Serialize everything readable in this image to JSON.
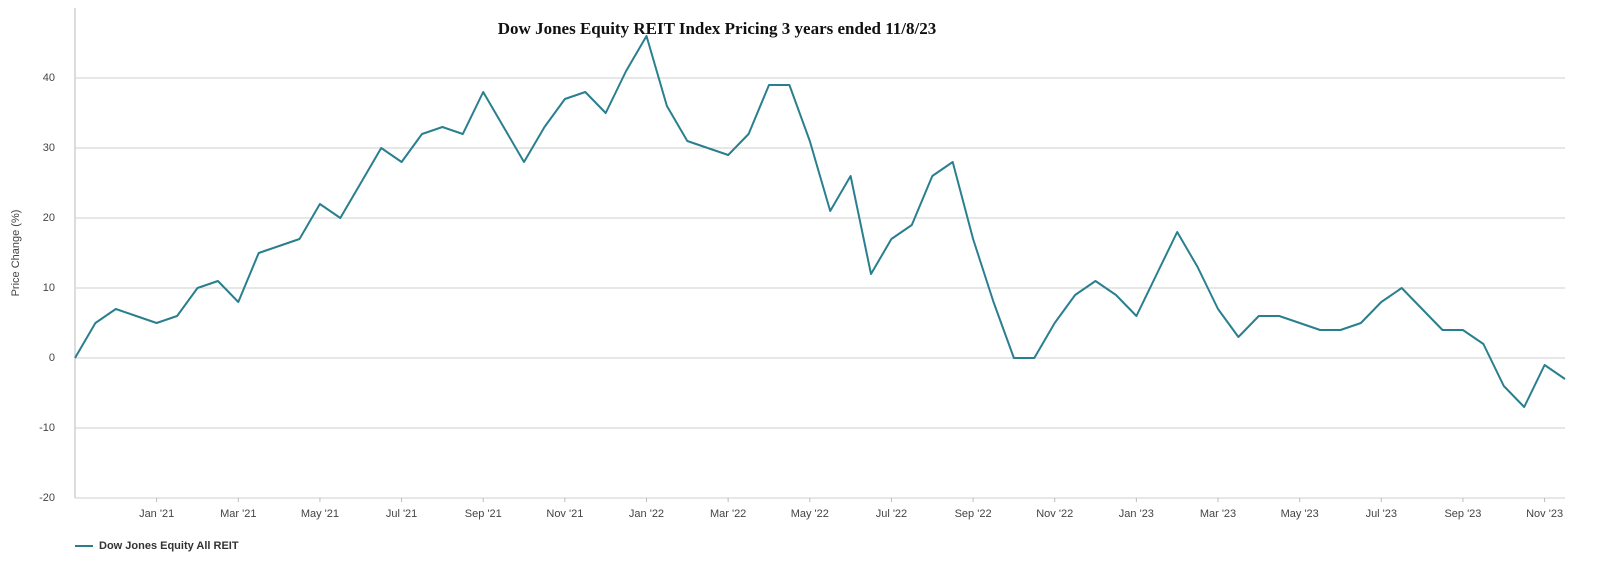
{
  "chart_data": {
    "type": "line",
    "title": "Dow Jones Equity REIT Index Pricing 3 years ended 11/8/23",
    "y_label": "Price Change (%)",
    "categories": [
      null,
      null,
      null,
      null,
      "Jan '21",
      null,
      null,
      null,
      "Mar '21",
      null,
      null,
      null,
      "May '21",
      null,
      null,
      null,
      "Jul '21",
      null,
      null,
      null,
      "Sep '21",
      null,
      null,
      null,
      "Nov '21",
      null,
      null,
      null,
      "Jan '22",
      null,
      null,
      null,
      "Mar '22",
      null,
      null,
      null,
      "May '22",
      null,
      null,
      null,
      "Jul '22",
      null,
      null,
      null,
      "Sep '22",
      null,
      null,
      null,
      "Nov '22",
      null,
      null,
      null,
      "Jan '23",
      null,
      null,
      null,
      "Mar '23",
      null,
      null,
      null,
      "May '23",
      null,
      null,
      null,
      "Jul '23",
      null,
      null,
      null,
      "Sep '23",
      null,
      null,
      null,
      "Nov '23",
      null
    ],
    "series": [
      {
        "name": "Dow Jones Equity All REIT",
        "color": "#2a7f8f",
        "values": [
          0,
          5,
          7,
          6,
          5,
          6,
          10,
          11,
          8,
          15,
          16,
          17,
          22,
          20,
          25,
          30,
          28,
          32,
          33,
          32,
          38,
          33,
          28,
          33,
          37,
          38,
          35,
          41,
          46,
          36,
          31,
          30,
          29,
          32,
          39,
          39,
          31,
          21,
          26,
          12,
          17,
          19,
          26,
          28,
          17,
          8,
          0,
          0,
          5,
          9,
          11,
          9,
          6,
          12,
          18,
          13,
          7,
          3,
          6,
          6,
          5,
          4,
          4,
          5,
          8,
          10,
          7,
          4,
          4,
          2,
          -4,
          -7,
          -1,
          -3
        ]
      }
    ],
    "ylim": [
      -20,
      50
    ],
    "yticks": [
      -20,
      -10,
      0,
      10,
      20,
      30,
      40
    ],
    "grid": true,
    "legend": "bottom-left"
  }
}
